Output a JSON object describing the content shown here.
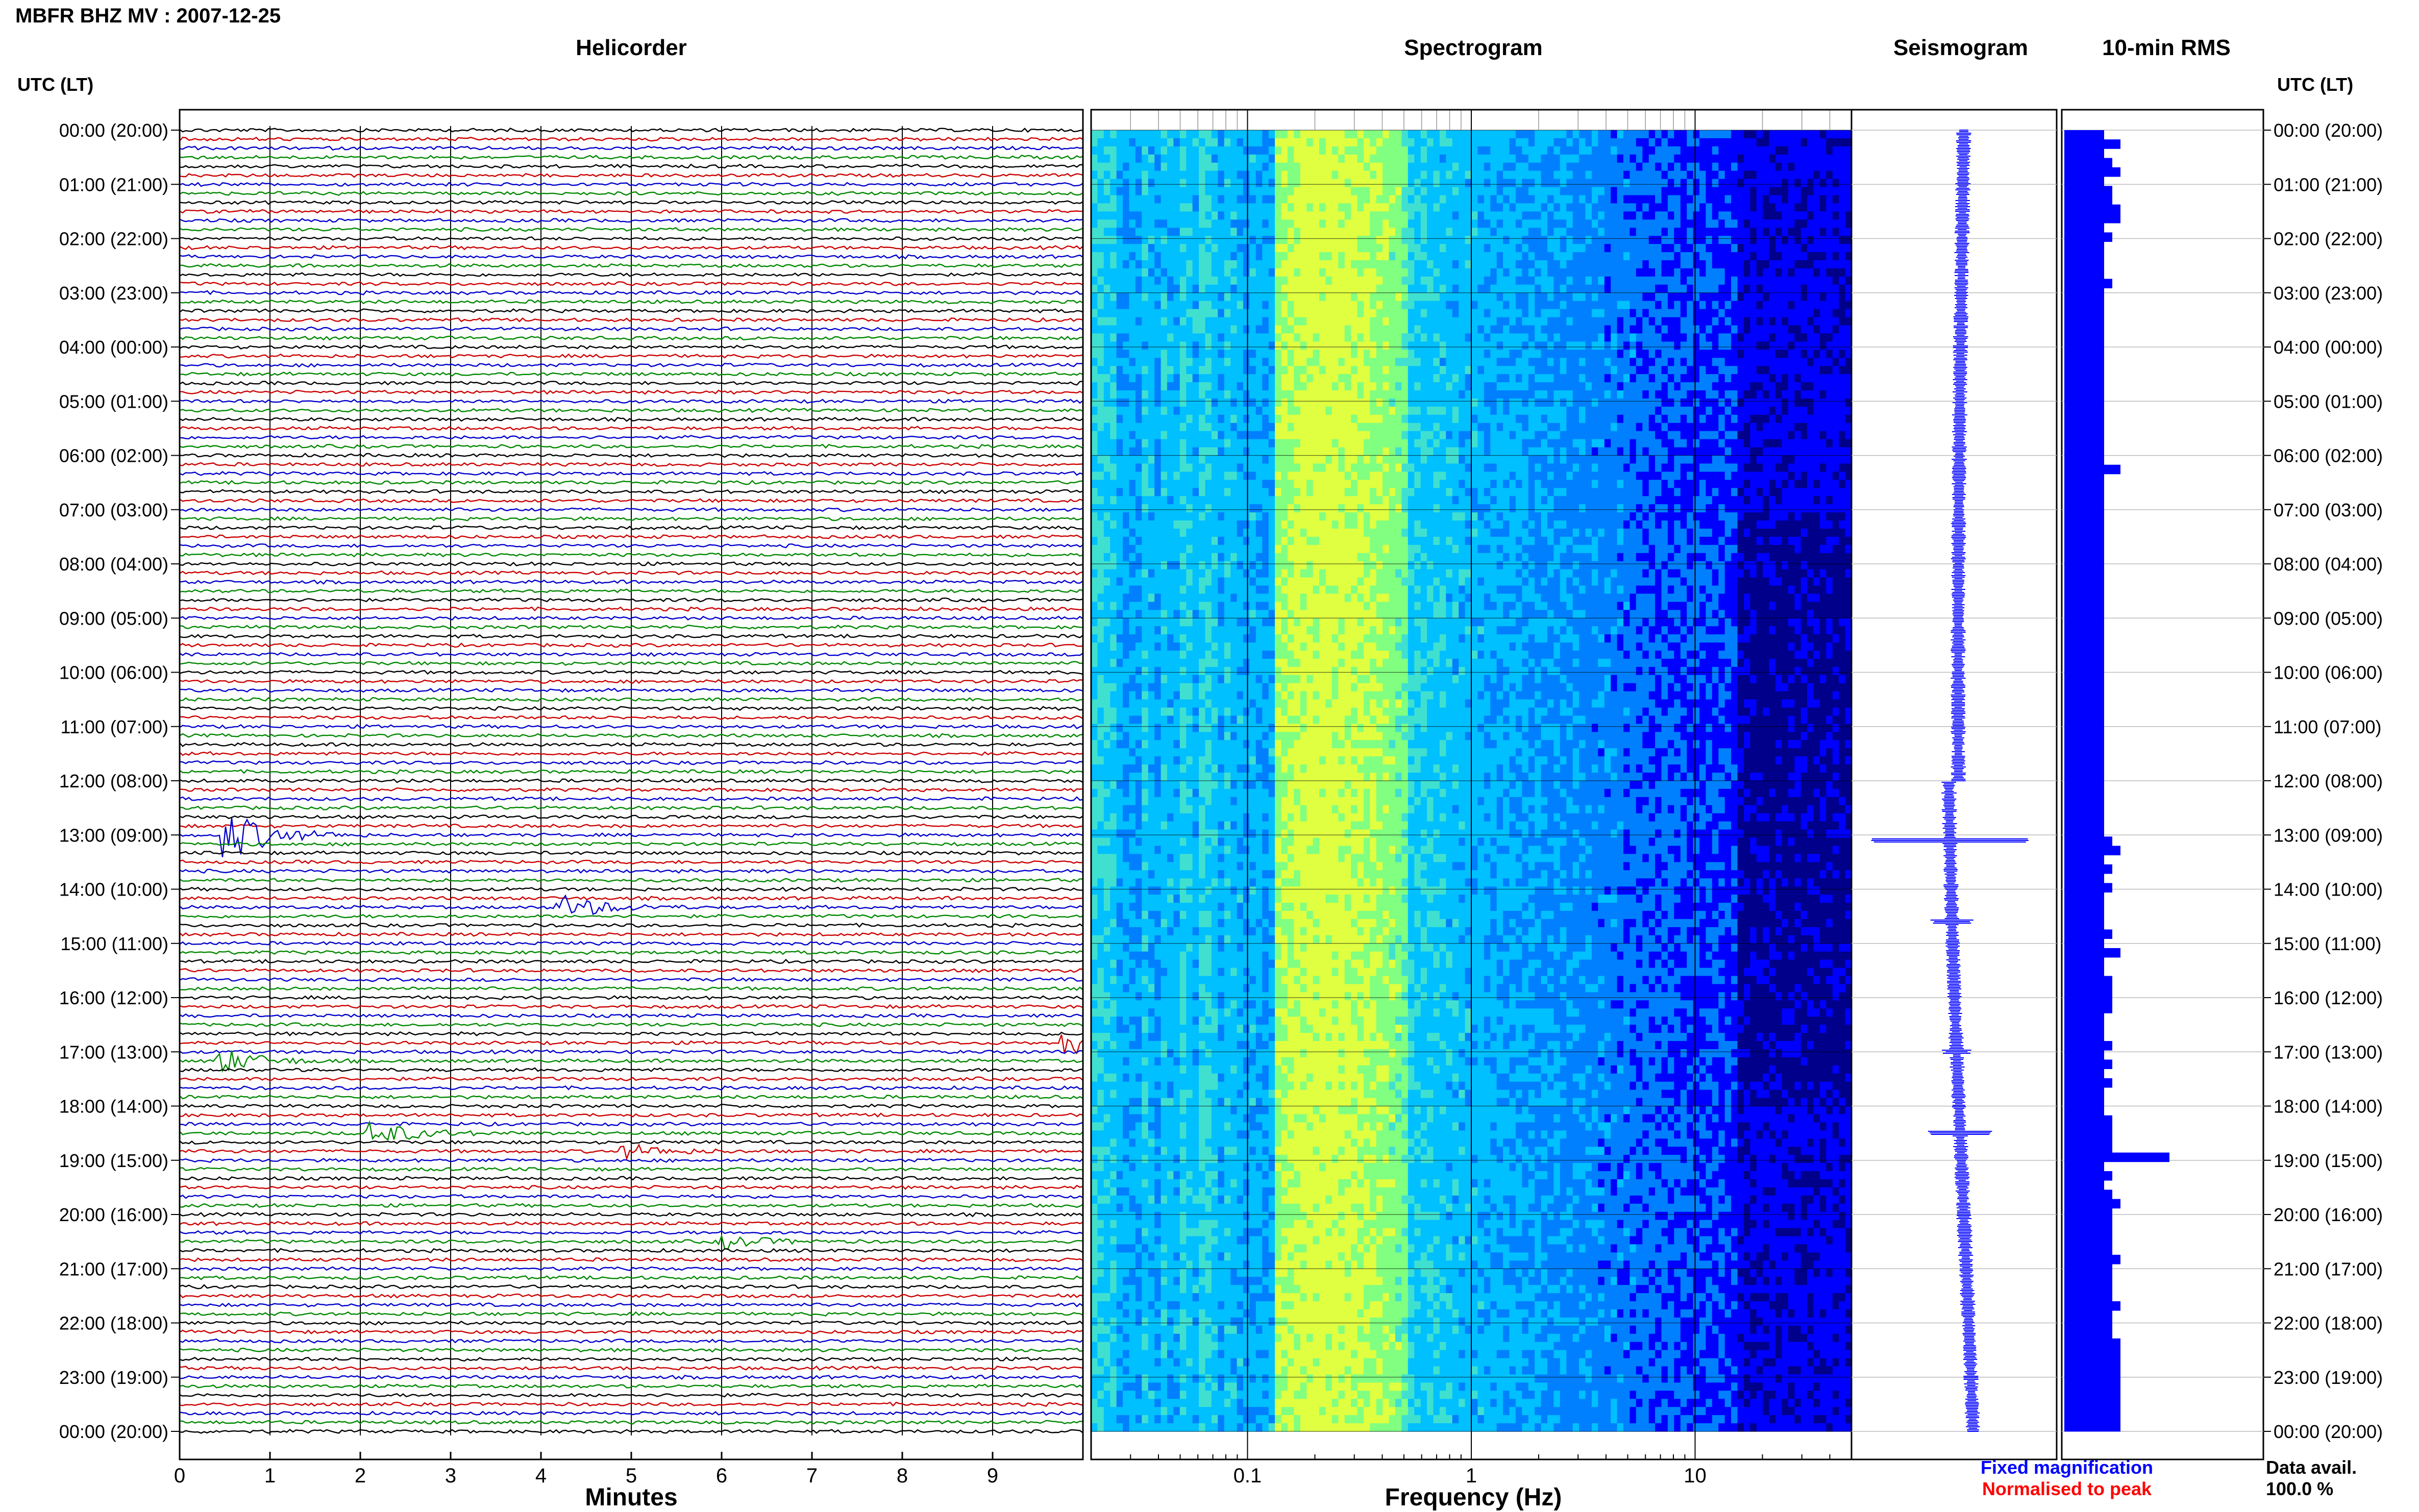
{
  "chart_data": {
    "type": "heatmap",
    "title": "MBFR BHZ MV : 2007-12-25",
    "y_axis_label": "UTC (LT)",
    "time_labels": [
      "00:00 (20:00)",
      "01:00 (21:00)",
      "02:00 (22:00)",
      "03:00 (23:00)",
      "04:00 (00:00)",
      "05:00 (01:00)",
      "06:00 (02:00)",
      "07:00 (03:00)",
      "08:00 (04:00)",
      "09:00 (05:00)",
      "10:00 (06:00)",
      "11:00 (07:00)",
      "12:00 (08:00)",
      "13:00 (09:00)",
      "14:00 (10:00)",
      "15:00 (11:00)",
      "16:00 (12:00)",
      "17:00 (13:00)",
      "18:00 (14:00)",
      "19:00 (15:00)",
      "20:00 (16:00)",
      "21:00 (17:00)",
      "22:00 (18:00)",
      "23:00 (19:00)",
      "00:00 (20:00)"
    ],
    "panels": {
      "helicorder": {
        "title": "Helicorder",
        "xlabel": "Minutes",
        "xticks": [
          0,
          1,
          2,
          3,
          4,
          5,
          6,
          7,
          8,
          9
        ],
        "xlim": [
          0,
          10
        ],
        "trace_colors": [
          "#000000",
          "#cc0000",
          "#0000cc",
          "#008800"
        ],
        "traces_per_hour": 6,
        "events": [
          {
            "hour": 13.0,
            "minute": 0.6,
            "amplitude": "large",
            "label": ""
          },
          {
            "hour": 14.3,
            "minute": 4.3,
            "amplitude": "medium",
            "label": ""
          },
          {
            "hour": 16.9,
            "minute": 9.9,
            "amplitude": "medium",
            "label": ""
          },
          {
            "hour": 17.1,
            "minute": 0.5,
            "amplitude": "medium",
            "label": ""
          },
          {
            "hour": 18.5,
            "minute": 2.2,
            "amplitude": "medium",
            "label": ""
          },
          {
            "hour": 18.8,
            "minute": 5.0,
            "amplitude": "small",
            "label": ""
          },
          {
            "hour": 20.5,
            "minute": 6.1,
            "amplitude": "small",
            "label": ""
          }
        ]
      },
      "spectrogram": {
        "title": "Spectrogram",
        "xlabel": "Frequency (Hz)",
        "xscale": "log",
        "xticks": [
          0.1,
          1,
          10
        ],
        "xtick_labels": [
          "0.1",
          "1",
          "10"
        ],
        "xlim": [
          0.02,
          50
        ],
        "colormap": [
          "#00008b",
          "#0000ff",
          "#0080ff",
          "#00c0ff",
          "#40e0d0",
          "#80ff80",
          "#e0ff40"
        ]
      },
      "seismogram": {
        "title": "Seismogram",
        "spikes": [
          {
            "hour": 13.1,
            "amplitude": 1.0
          },
          {
            "hour": 14.6,
            "amplitude": 0.2
          },
          {
            "hour": 18.5,
            "amplitude": 0.35
          },
          {
            "hour": 17.0,
            "amplitude": 0.1
          }
        ]
      },
      "rms": {
        "title": "10-min RMS",
        "bar_color": "#0000ff",
        "values": [
          3,
          5,
          3,
          4,
          5,
          3,
          4,
          4,
          5,
          5,
          3,
          4,
          3,
          3,
          3,
          3,
          4,
          3,
          3,
          3,
          3,
          3,
          3,
          3,
          3,
          3,
          3,
          3,
          3,
          3,
          3,
          3,
          3,
          3,
          3,
          3,
          5,
          3,
          3,
          3,
          3,
          3,
          3,
          3,
          3,
          3,
          3,
          3,
          3,
          3,
          3,
          3,
          3,
          3,
          3,
          3,
          3,
          3,
          3,
          3,
          3,
          3,
          3,
          3,
          3,
          3,
          3,
          3,
          3,
          3,
          3,
          3,
          3,
          3,
          3,
          3,
          4,
          5,
          3,
          4,
          3,
          4,
          3,
          3,
          3,
          3,
          4,
          3,
          5,
          3,
          3,
          4,
          4,
          4,
          4,
          3,
          3,
          3,
          4,
          3,
          4,
          3,
          4,
          3,
          3,
          3,
          4,
          4,
          4,
          4,
          11,
          3,
          4,
          3,
          4,
          5,
          4,
          4,
          4,
          4,
          4,
          5,
          4,
          4,
          4,
          4,
          5,
          4,
          4,
          4,
          5,
          5,
          5,
          5,
          5,
          5,
          5,
          5,
          5,
          5
        ]
      }
    },
    "legend": {
      "fixed": "Fixed magnification",
      "normalised": "Normalised to peak",
      "fixed_color": "#0000ff",
      "normalised_color": "#ff0000"
    },
    "data_avail_label": "Data avail.",
    "data_avail_value": "100.0 %"
  }
}
